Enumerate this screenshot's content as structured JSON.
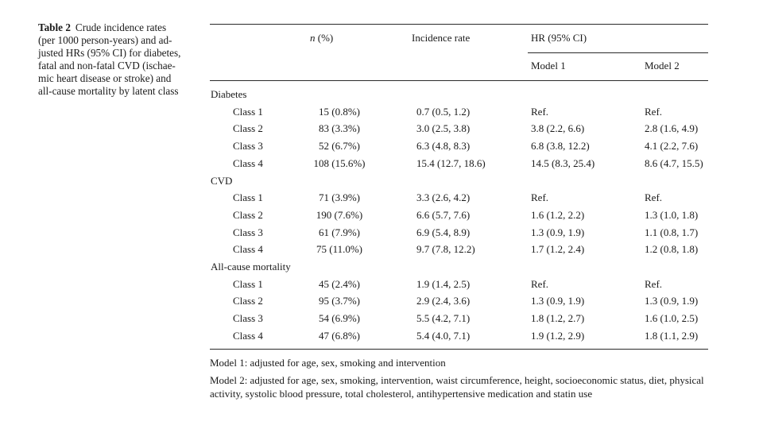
{
  "caption": {
    "label": "Table 2",
    "lines": [
      "Crude incidence rates",
      "(per 1000 person-years) and ad-",
      "justed HRs (95% CI) for diabetes,",
      "fatal and non-fatal CVD (ischae-",
      "mic heart disease or stroke) and",
      "all-cause mortality by latent class"
    ]
  },
  "header": {
    "n_italic": "n",
    "n_rest": " (%)",
    "incidence": "Incidence rate",
    "hr": "HR (95% CI)",
    "model1": "Model 1",
    "model2": "Model 2"
  },
  "sections": [
    {
      "title": "Diabetes",
      "rows": [
        {
          "label": "Class 1",
          "n": "15 (0.8%)",
          "rate": "0.7 (0.5, 1.2)",
          "m1": "Ref.",
          "m2": "Ref."
        },
        {
          "label": "Class 2",
          "n": "83 (3.3%)",
          "rate": "3.0 (2.5, 3.8)",
          "m1": "3.8 (2.2, 6.6)",
          "m2": "2.8 (1.6, 4.9)"
        },
        {
          "label": "Class 3",
          "n": "52 (6.7%)",
          "rate": "6.3 (4.8, 8.3)",
          "m1": "6.8 (3.8, 12.2)",
          "m2": "4.1 (2.2, 7.6)"
        },
        {
          "label": "Class 4",
          "n": "108 (15.6%)",
          "rate": "15.4 (12.7, 18.6)",
          "m1": "14.5 (8.3, 25.4)",
          "m2": "8.6 (4.7, 15.5)"
        }
      ]
    },
    {
      "title": "CVD",
      "rows": [
        {
          "label": "Class 1",
          "n": "71 (3.9%)",
          "rate": "3.3 (2.6, 4.2)",
          "m1": "Ref.",
          "m2": "Ref."
        },
        {
          "label": "Class 2",
          "n": "190 (7.6%)",
          "rate": "6.6 (5.7, 7.6)",
          "m1": "1.6 (1.2, 2.2)",
          "m2": "1.3 (1.0, 1.8)"
        },
        {
          "label": "Class 3",
          "n": "61 (7.9%)",
          "rate": "6.9 (5.4, 8.9)",
          "m1": "1.3 (0.9, 1.9)",
          "m2": "1.1 (0.8, 1.7)"
        },
        {
          "label": "Class 4",
          "n": "75 (11.0%)",
          "rate": "9.7 (7.8, 12.2)",
          "m1": "1.7 (1.2, 2.4)",
          "m2": "1.2 (0.8, 1.8)"
        }
      ]
    },
    {
      "title": "All-cause mortality",
      "rows": [
        {
          "label": "Class 1",
          "n": "45 (2.4%)",
          "rate": "1.9 (1.4, 2.5)",
          "m1": "Ref.",
          "m2": "Ref."
        },
        {
          "label": "Class 2",
          "n": "95 (3.7%)",
          "rate": "2.9 (2.4, 3.6)",
          "m1": "1.3 (0.9, 1.9)",
          "m2": "1.3 (0.9, 1.9)"
        },
        {
          "label": "Class 3",
          "n": "54 (6.9%)",
          "rate": "5.5 (4.2, 7.1)",
          "m1": "1.8 (1.2, 2.7)",
          "m2": "1.6 (1.0, 2.5)"
        },
        {
          "label": "Class 4",
          "n": "47 (6.8%)",
          "rate": "5.4 (4.0, 7.1)",
          "m1": "1.9 (1.2, 2.9)",
          "m2": "1.8 (1.1, 2.9)"
        }
      ]
    }
  ],
  "notes": {
    "model1": "Model 1: adjusted for age, sex, smoking and intervention",
    "model2": "Model 2: adjusted for age, sex, smoking, intervention, waist circumference, height, socioeconomic status, diet, physical activity, systolic blood pressure, total cholesterol, antihypertensive medication and statin use"
  }
}
